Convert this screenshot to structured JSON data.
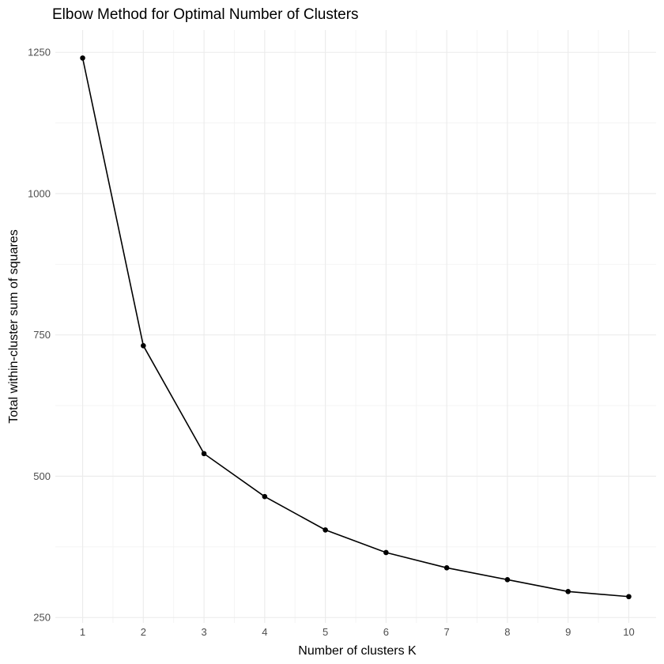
{
  "chart_data": {
    "type": "line",
    "title": "Elbow Method for Optimal Number of Clusters",
    "xlabel": "Number of clusters K",
    "ylabel": "Total within-cluster sum of squares",
    "x": [
      1,
      2,
      3,
      4,
      5,
      6,
      7,
      8,
      9,
      10
    ],
    "series": [
      {
        "values": [
          1240,
          731,
          540,
          464,
          405,
          365,
          338,
          317,
          296,
          287
        ]
      }
    ],
    "x_ticks": [
      1,
      2,
      3,
      4,
      5,
      6,
      7,
      8,
      9,
      10
    ],
    "y_ticks": [
      250,
      500,
      750,
      1000,
      1250
    ],
    "xlim": [
      0.55,
      10.45
    ],
    "ylim": [
      240.5,
      1289.5
    ],
    "grid": true,
    "legend": "none",
    "colors": {
      "line": "#000000",
      "point": "#000000",
      "grid_major": "#ebebeb",
      "grid_minor": "#f3f3f3",
      "tick_text": "#4d4d4d",
      "background": "#ffffff"
    }
  }
}
